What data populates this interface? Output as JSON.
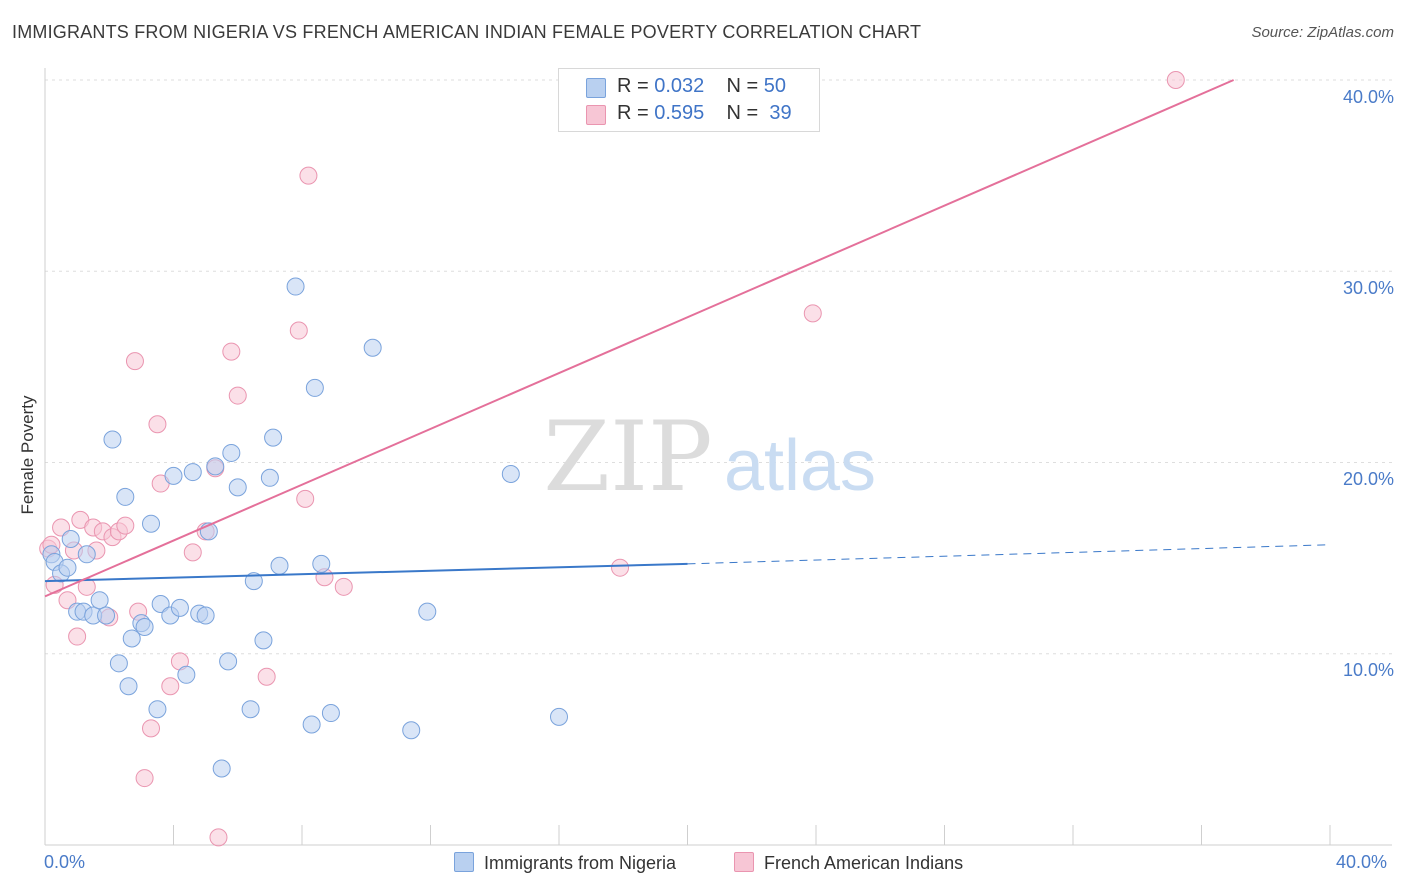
{
  "header": {
    "title": "IMMIGRANTS FROM NIGERIA VS FRENCH AMERICAN INDIAN FEMALE POVERTY CORRELATION CHART",
    "source": "Source: ZipAtlas.com"
  },
  "watermark": {
    "zip": "ZIP",
    "atlas": "atlas"
  },
  "legend_top": {
    "rows": [
      {
        "r_label": "R =",
        "r_value": "0.032",
        "n_label": "N =",
        "n_value": "50"
      },
      {
        "r_label": "R =",
        "r_value": "0.595",
        "n_label": "N =",
        "n_value": "39"
      }
    ]
  },
  "legend_bottom": {
    "series1": "Immigrants from Nigeria",
    "series2": "French American Indians"
  },
  "colors": {
    "blue_fill": "#b9d0f0",
    "blue_stroke": "#7aa3dc",
    "blue_line": "#3a78c9",
    "pink_fill": "#f7c6d5",
    "pink_stroke": "#ea95b0",
    "pink_line": "#e4709a",
    "axis_text": "#4a7bc8"
  },
  "chart_data": {
    "type": "scatter",
    "title": "IMMIGRANTS FROM NIGERIA VS FRENCH AMERICAN INDIAN FEMALE POVERTY CORRELATION CHART",
    "xlabel": "",
    "ylabel": "Female Poverty",
    "xlim": [
      0,
      40
    ],
    "ylim": [
      0,
      40
    ],
    "x_tick_labels": [
      "0.0%",
      "40.0%"
    ],
    "y_tick_labels": [
      "10.0%",
      "20.0%",
      "30.0%",
      "40.0%"
    ],
    "y_ticks": [
      10,
      20,
      30,
      40
    ],
    "grid": true,
    "legend_position": "top-center",
    "series": [
      {
        "name": "Immigrants from Nigeria",
        "color": "#b9d0f0",
        "r": 0.032,
        "n": 50,
        "trend": {
          "x": [
            0,
            20
          ],
          "y": [
            13.8,
            14.7
          ],
          "dashed_to": [
            40,
            15.7
          ]
        },
        "points": [
          [
            0.2,
            15.2
          ],
          [
            0.3,
            14.8
          ],
          [
            0.5,
            14.2
          ],
          [
            0.7,
            14.5
          ],
          [
            0.8,
            16.0
          ],
          [
            1.0,
            12.2
          ],
          [
            1.2,
            12.2
          ],
          [
            1.3,
            15.2
          ],
          [
            1.5,
            12.0
          ],
          [
            1.7,
            12.8
          ],
          [
            1.9,
            12.0
          ],
          [
            2.1,
            21.2
          ],
          [
            2.3,
            9.5
          ],
          [
            2.5,
            18.2
          ],
          [
            2.6,
            8.3
          ],
          [
            2.7,
            10.8
          ],
          [
            3.0,
            11.6
          ],
          [
            3.1,
            11.4
          ],
          [
            3.3,
            16.8
          ],
          [
            3.5,
            7.1
          ],
          [
            3.6,
            12.6
          ],
          [
            3.9,
            12.0
          ],
          [
            4.0,
            19.3
          ],
          [
            4.2,
            12.4
          ],
          [
            4.4,
            8.9
          ],
          [
            4.6,
            19.5
          ],
          [
            4.8,
            12.1
          ],
          [
            5.0,
            12.0
          ],
          [
            5.1,
            16.4
          ],
          [
            5.3,
            19.8
          ],
          [
            5.5,
            4.0
          ],
          [
            5.7,
            9.6
          ],
          [
            5.8,
            20.5
          ],
          [
            6.0,
            18.7
          ],
          [
            6.4,
            7.1
          ],
          [
            6.5,
            13.8
          ],
          [
            6.8,
            10.7
          ],
          [
            7.0,
            19.2
          ],
          [
            7.1,
            21.3
          ],
          [
            7.3,
            14.6
          ],
          [
            7.8,
            29.2
          ],
          [
            8.3,
            6.3
          ],
          [
            8.4,
            23.9
          ],
          [
            8.6,
            14.7
          ],
          [
            8.9,
            6.9
          ],
          [
            10.2,
            26.0
          ],
          [
            11.4,
            6.0
          ],
          [
            11.9,
            12.2
          ],
          [
            14.5,
            19.4
          ],
          [
            16.0,
            6.7
          ]
        ]
      },
      {
        "name": "French American Indians",
        "color": "#f7c6d5",
        "r": 0.595,
        "n": 39,
        "trend": {
          "x": [
            0,
            37
          ],
          "y": [
            13.0,
            40.0
          ]
        },
        "points": [
          [
            0.1,
            15.5
          ],
          [
            0.2,
            15.7
          ],
          [
            0.3,
            13.6
          ],
          [
            0.5,
            16.6
          ],
          [
            0.7,
            12.8
          ],
          [
            0.9,
            15.4
          ],
          [
            1.0,
            10.9
          ],
          [
            1.1,
            17.0
          ],
          [
            1.3,
            13.5
          ],
          [
            1.5,
            16.6
          ],
          [
            1.6,
            15.4
          ],
          [
            1.8,
            16.4
          ],
          [
            2.0,
            11.9
          ],
          [
            2.1,
            16.1
          ],
          [
            2.3,
            16.4
          ],
          [
            2.5,
            16.7
          ],
          [
            2.8,
            25.3
          ],
          [
            2.9,
            12.2
          ],
          [
            3.1,
            3.5
          ],
          [
            3.3,
            6.1
          ],
          [
            3.5,
            22.0
          ],
          [
            3.6,
            18.9
          ],
          [
            3.9,
            8.3
          ],
          [
            4.2,
            9.6
          ],
          [
            4.6,
            15.3
          ],
          [
            5.0,
            16.4
          ],
          [
            5.3,
            19.7
          ],
          [
            5.4,
            0.4
          ],
          [
            5.8,
            25.8
          ],
          [
            6.0,
            23.5
          ],
          [
            6.9,
            8.8
          ],
          [
            7.9,
            26.9
          ],
          [
            8.1,
            18.1
          ],
          [
            8.2,
            35.0
          ],
          [
            8.7,
            14.0
          ],
          [
            9.3,
            13.5
          ],
          [
            17.9,
            14.5
          ],
          [
            23.9,
            27.8
          ],
          [
            35.2,
            40.0
          ]
        ]
      }
    ]
  }
}
